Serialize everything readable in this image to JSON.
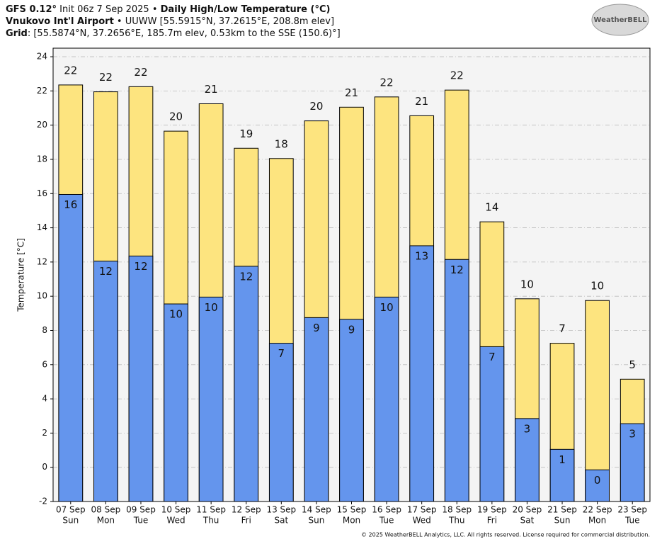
{
  "chart_data": {
    "type": "bar",
    "header": {
      "line1": [
        "GFS 0.12°",
        " Init 06z 7 Sep 2025 • ",
        "Daily High/Low Temperature (°C)"
      ],
      "line2": [
        "Vnukovo Int'l Airport",
        " • UUWW [55.5915°N, 37.2615°E, 208.8m elev]"
      ],
      "line3": [
        "Grid",
        ": [55.5874°N, 37.2656°E, 185.7m elev, 0.53km to the SSE (150.6)°]"
      ]
    },
    "logo": "WeatherBELL",
    "footer": "© 2025 WeatherBELL Analytics, LLC. All rights reserved. License required for commercial distribution.",
    "y_label": "Temperature [°C]",
    "categories": [
      "07 Sep",
      "08 Sep",
      "09 Sep",
      "10 Sep",
      "11 Sep",
      "12 Sep",
      "13 Sep",
      "14 Sep",
      "15 Sep",
      "16 Sep",
      "17 Sep",
      "18 Sep",
      "19 Sep",
      "20 Sep",
      "21 Sep",
      "22 Sep",
      "23 Sep"
    ],
    "weekdays": [
      "Sun",
      "Mon",
      "Tue",
      "Wed",
      "Thu",
      "Fri",
      "Sat",
      "Sun",
      "Mon",
      "Tue",
      "Wed",
      "Thu",
      "Fri",
      "Sat",
      "Sun",
      "Mon",
      "Tue"
    ],
    "series": [
      {
        "name": "High",
        "color": "#fde47f",
        "values": [
          22.35,
          21.95,
          22.25,
          19.65,
          21.25,
          18.65,
          18.05,
          20.25,
          21.05,
          21.65,
          20.55,
          22.05,
          14.35,
          9.85,
          7.25,
          9.75,
          5.15
        ],
        "value_labels": [
          "22",
          "22",
          "22",
          "20",
          "21",
          "19",
          "18",
          "20",
          "21",
          "22",
          "21",
          "22",
          "14",
          "10",
          "7",
          "10",
          "5"
        ]
      },
      {
        "name": "Low",
        "color": "#6495ed",
        "values": [
          15.95,
          12.05,
          12.35,
          9.55,
          9.95,
          11.75,
          7.25,
          8.75,
          8.65,
          9.95,
          12.95,
          12.15,
          7.05,
          2.85,
          1.05,
          -0.15,
          2.55
        ],
        "value_labels": [
          "16",
          "12",
          "12",
          "10",
          "10",
          "12",
          "7",
          "9",
          "9",
          "10",
          "13",
          "12",
          "7",
          "3",
          "1",
          "0",
          "3"
        ]
      }
    ],
    "ylim": [
      -2,
      24.5
    ],
    "yticks": [
      -2,
      0,
      2,
      4,
      6,
      8,
      10,
      12,
      14,
      16,
      18,
      20,
      22,
      24
    ],
    "grid": true
  }
}
